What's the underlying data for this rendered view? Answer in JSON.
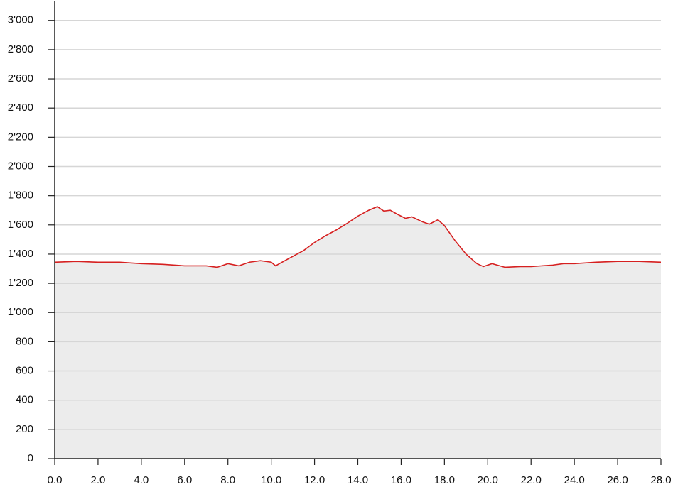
{
  "chart_data": {
    "type": "area",
    "line_color": "#d62020",
    "fill_color": "#ececec",
    "grid": true,
    "x": [
      0,
      1,
      2,
      3,
      4,
      5,
      6,
      7,
      7.5,
      8,
      8.5,
      9,
      9.5,
      10,
      10.2,
      10.5,
      11,
      11.5,
      12,
      12.5,
      13,
      13.5,
      14,
      14.5,
      14.9,
      15.2,
      15.5,
      15.8,
      16.2,
      16.5,
      17,
      17.3,
      17.7,
      18,
      18.5,
      19,
      19.5,
      19.8,
      20.2,
      20.8,
      21.5,
      22,
      23,
      23.5,
      24,
      25,
      26,
      27,
      28
    ],
    "values": [
      1345,
      1350,
      1345,
      1345,
      1335,
      1330,
      1320,
      1320,
      1310,
      1335,
      1320,
      1345,
      1355,
      1345,
      1320,
      1345,
      1385,
      1425,
      1480,
      1525,
      1565,
      1610,
      1660,
      1700,
      1725,
      1695,
      1700,
      1675,
      1645,
      1655,
      1620,
      1605,
      1635,
      1595,
      1490,
      1400,
      1335,
      1315,
      1335,
      1310,
      1315,
      1315,
      1325,
      1335,
      1335,
      1345,
      1350,
      1350,
      1345
    ],
    "xlim": [
      0,
      28
    ],
    "ylim": [
      0,
      3130
    ],
    "xticks": [
      {
        "value": 0,
        "label": "0.0"
      },
      {
        "value": 2,
        "label": "2.0"
      },
      {
        "value": 4,
        "label": "4.0"
      },
      {
        "value": 6,
        "label": "6.0"
      },
      {
        "value": 8,
        "label": "8.0"
      },
      {
        "value": 10,
        "label": "10.0"
      },
      {
        "value": 12,
        "label": "12.0"
      },
      {
        "value": 14,
        "label": "14.0"
      },
      {
        "value": 16,
        "label": "16.0"
      },
      {
        "value": 18,
        "label": "18.0"
      },
      {
        "value": 20,
        "label": "20.0"
      },
      {
        "value": 22,
        "label": "22.0"
      },
      {
        "value": 24,
        "label": "24.0"
      },
      {
        "value": 26,
        "label": "26.0"
      },
      {
        "value": 28,
        "label": "28.0"
      }
    ],
    "yticks": [
      0,
      200,
      400,
      600,
      800,
      {
        "value": 1000,
        "label": "1'000"
      },
      {
        "value": 1200,
        "label": "1'200"
      },
      {
        "value": 1400,
        "label": "1'400"
      },
      {
        "value": 1600,
        "label": "1'600"
      },
      {
        "value": 1800,
        "label": "1'800"
      },
      {
        "value": 2000,
        "label": "2'000"
      },
      {
        "value": 2200,
        "label": "2'200"
      },
      {
        "value": 2400,
        "label": "2'400"
      },
      {
        "value": 2600,
        "label": "2'600"
      },
      {
        "value": 2800,
        "label": "2'800"
      },
      {
        "value": 3000,
        "label": "3'000"
      }
    ]
  }
}
